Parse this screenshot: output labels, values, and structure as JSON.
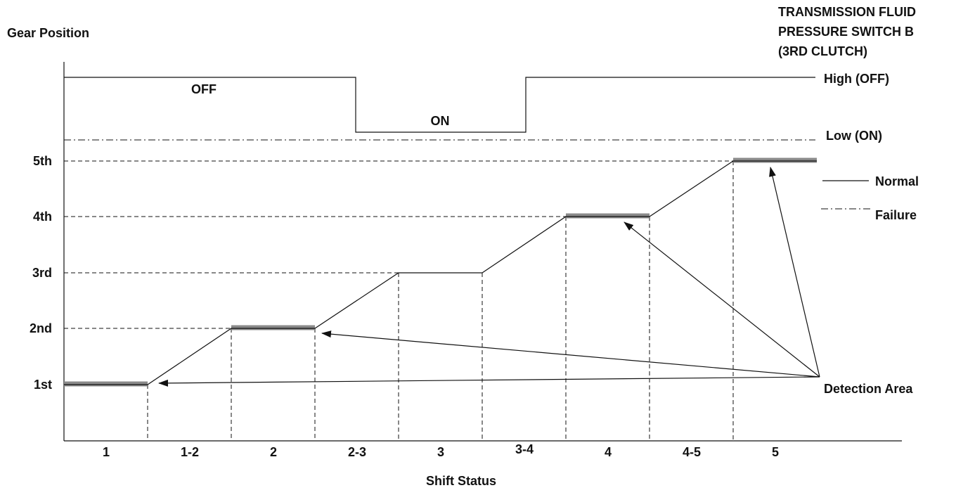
{
  "y_axis_label": "Gear Position",
  "title_lines": [
    "TRANSMISSION FLUID",
    "PRESSURE SWITCH B",
    "(3RD CLUTCH)"
  ],
  "switch_levels": {
    "high": "High (OFF)",
    "low": "Low (ON)"
  },
  "switch_states": {
    "off": "OFF",
    "on": "ON"
  },
  "gears": [
    "5th",
    "4th",
    "3rd",
    "2nd",
    "1st"
  ],
  "legend": {
    "normal": "Normal",
    "failure": "Failure"
  },
  "detection_label": "Detection Area",
  "shift_statuses": [
    "1",
    "1-2",
    "2",
    "2-3",
    "3",
    "3-4",
    "4",
    "4-5",
    "5"
  ],
  "x_axis_label": "Shift Status"
}
